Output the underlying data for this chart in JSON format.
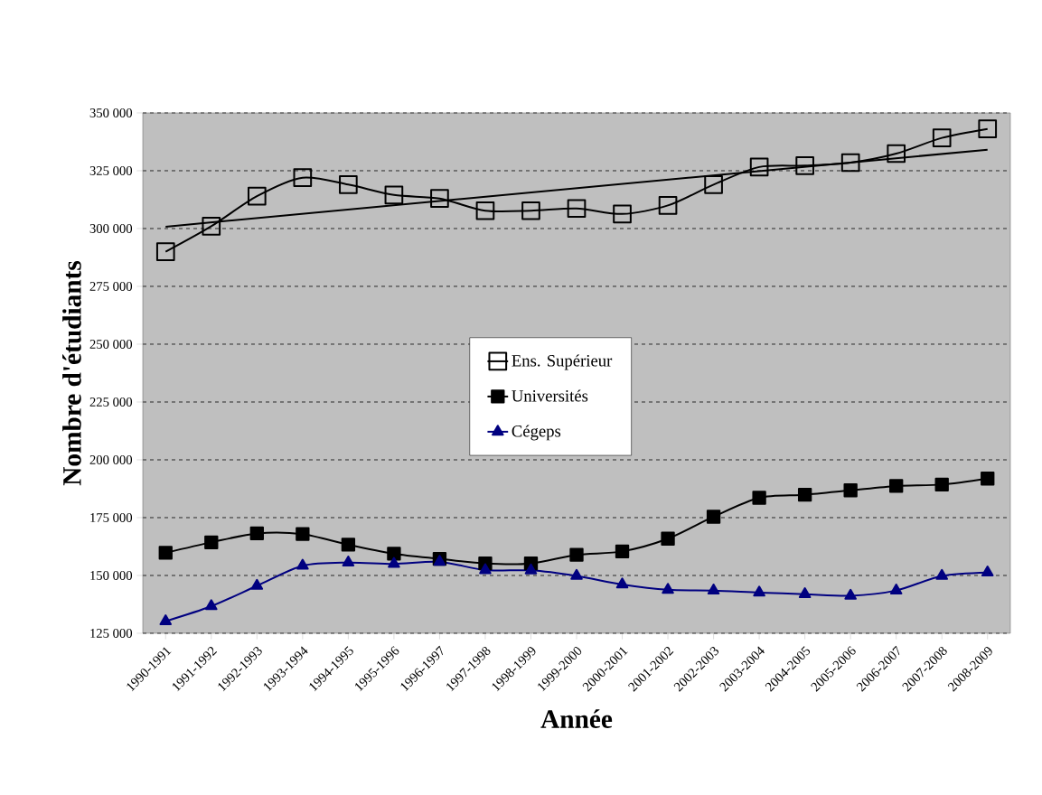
{
  "chart_data": {
    "type": "line",
    "xlabel": "Année",
    "ylabel": "Nombre d'étudiants",
    "categories": [
      "1990-1991",
      "1991-1992",
      "1992-1993",
      "1993-1994",
      "1994-1995",
      "1995-1996",
      "1996-1997",
      "1997-1998",
      "1998-1999",
      "1999-2000",
      "2000-2001",
      "2001-2002",
      "2002-2003",
      "2003-2004",
      "2004-2005",
      "2005-2006",
      "2006-2007",
      "2007-2008",
      "2008-2009"
    ],
    "series": [
      {
        "name": "Ens. Supérieur",
        "color": "#000000",
        "marker": "square",
        "values": [
          290000,
          301000,
          314000,
          322000,
          319000,
          314500,
          313000,
          307700,
          307700,
          308700,
          306300,
          310000,
          319000,
          326600,
          327200,
          328500,
          332400,
          339200,
          343100
        ]
      },
      {
        "name": "Universités",
        "color": "#000000",
        "marker": "square",
        "values": [
          159800,
          164300,
          168200,
          167900,
          163300,
          159400,
          157200,
          155200,
          155200,
          158900,
          160400,
          165900,
          175400,
          183600,
          184900,
          186800,
          188700,
          189300,
          191900
        ]
      },
      {
        "name": "Cégeps",
        "color": "#000080",
        "marker": "triangle",
        "values": [
          130200,
          136700,
          145500,
          154200,
          155600,
          155000,
          155900,
          152300,
          152200,
          149800,
          146100,
          143800,
          143500,
          142600,
          141900,
          141200,
          143500,
          149800,
          151300
        ]
      },
      {
        "type": "line",
        "color": "#000000",
        "marker": "none",
        "x": [
          "1990-1991",
          "2008-2009"
        ],
        "values": [
          300800,
          334100
        ]
      }
    ],
    "ylim": [
      125000,
      350000
    ],
    "yticks": [
      {
        "value": 125000,
        "label": "125 000"
      },
      {
        "value": 150000,
        "label": "150 000"
      },
      {
        "value": 175000,
        "label": "175 000"
      },
      {
        "value": 200000,
        "label": "200 000"
      },
      {
        "value": 225000,
        "label": "225 000"
      },
      {
        "value": 250000,
        "label": "250 000"
      },
      {
        "value": 275000,
        "label": "275 000"
      },
      {
        "value": 300000,
        "label": "300 000"
      },
      {
        "value": 325000,
        "label": "325 000"
      },
      {
        "value": 350000,
        "label": "350 000"
      }
    ],
    "grid": "y",
    "legend": "center"
  }
}
